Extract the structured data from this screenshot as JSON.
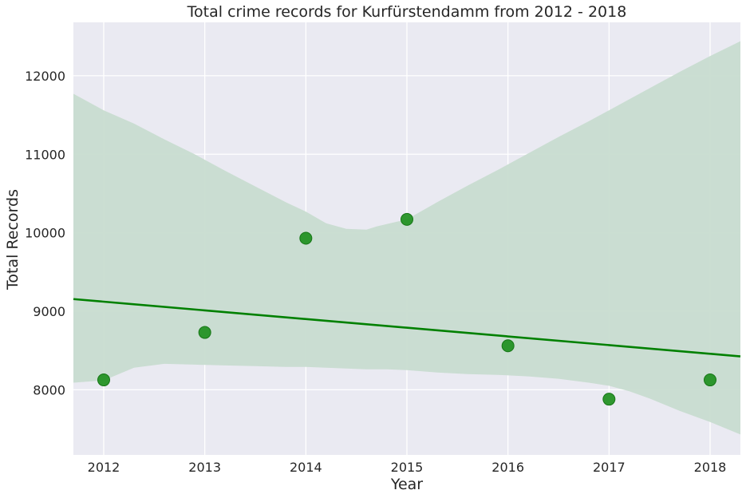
{
  "chart_data": {
    "type": "scatter",
    "title": "Total crime records for Kurfürstendamm from 2012 - 2018",
    "xlabel": "Year",
    "ylabel": "Total Records",
    "xlim": [
      2011.7,
      2018.3
    ],
    "ylim": [
      7170,
      12680
    ],
    "x_ticks": [
      2012,
      2013,
      2014,
      2015,
      2016,
      2017,
      2018
    ],
    "y_ticks": [
      8000,
      9000,
      10000,
      11000,
      12000
    ],
    "grid": true,
    "legend": "none",
    "points": [
      {
        "x": 2012,
        "y": 8125
      },
      {
        "x": 2013,
        "y": 8730
      },
      {
        "x": 2014,
        "y": 9930
      },
      {
        "x": 2015,
        "y": 10170
      },
      {
        "x": 2016,
        "y": 8560
      },
      {
        "x": 2017,
        "y": 7880
      },
      {
        "x": 2018,
        "y": 8125
      }
    ],
    "regression_line": {
      "x": [
        2011.7,
        2018.3
      ],
      "y": [
        9155,
        8425
      ]
    },
    "confidence_band": {
      "x": [
        2011.7,
        2012.0,
        2012.3,
        2012.6,
        2012.9,
        2013.2,
        2013.5,
        2013.8,
        2014.0,
        2014.2,
        2014.4,
        2014.6,
        2014.7,
        2014.8,
        2015.0,
        2015.3,
        2015.6,
        2015.9,
        2016.2,
        2016.5,
        2016.8,
        2017.0,
        2017.2,
        2017.4,
        2017.7,
        2018.0,
        2018.3
      ],
      "upper": [
        11770,
        11560,
        11390,
        11190,
        11000,
        10790,
        10590,
        10390,
        10270,
        10120,
        10050,
        10040,
        10080,
        10110,
        10170,
        10390,
        10600,
        10800,
        11010,
        11220,
        11420,
        11560,
        11700,
        11840,
        12050,
        12250,
        12440
      ],
      "lower": [
        8090,
        8120,
        8280,
        8330,
        8320,
        8310,
        8300,
        8290,
        8290,
        8280,
        8270,
        8260,
        8260,
        8260,
        8250,
        8220,
        8200,
        8190,
        8170,
        8140,
        8090,
        8050,
        7980,
        7890,
        7730,
        7590,
        7430
      ]
    },
    "colors": {
      "points": "#1e8f1e",
      "point_edge": "#167516",
      "line": "#008000",
      "band": "#c8dcd0",
      "plot_bg": "#eaeaf2",
      "grid": "#ffffff"
    }
  }
}
